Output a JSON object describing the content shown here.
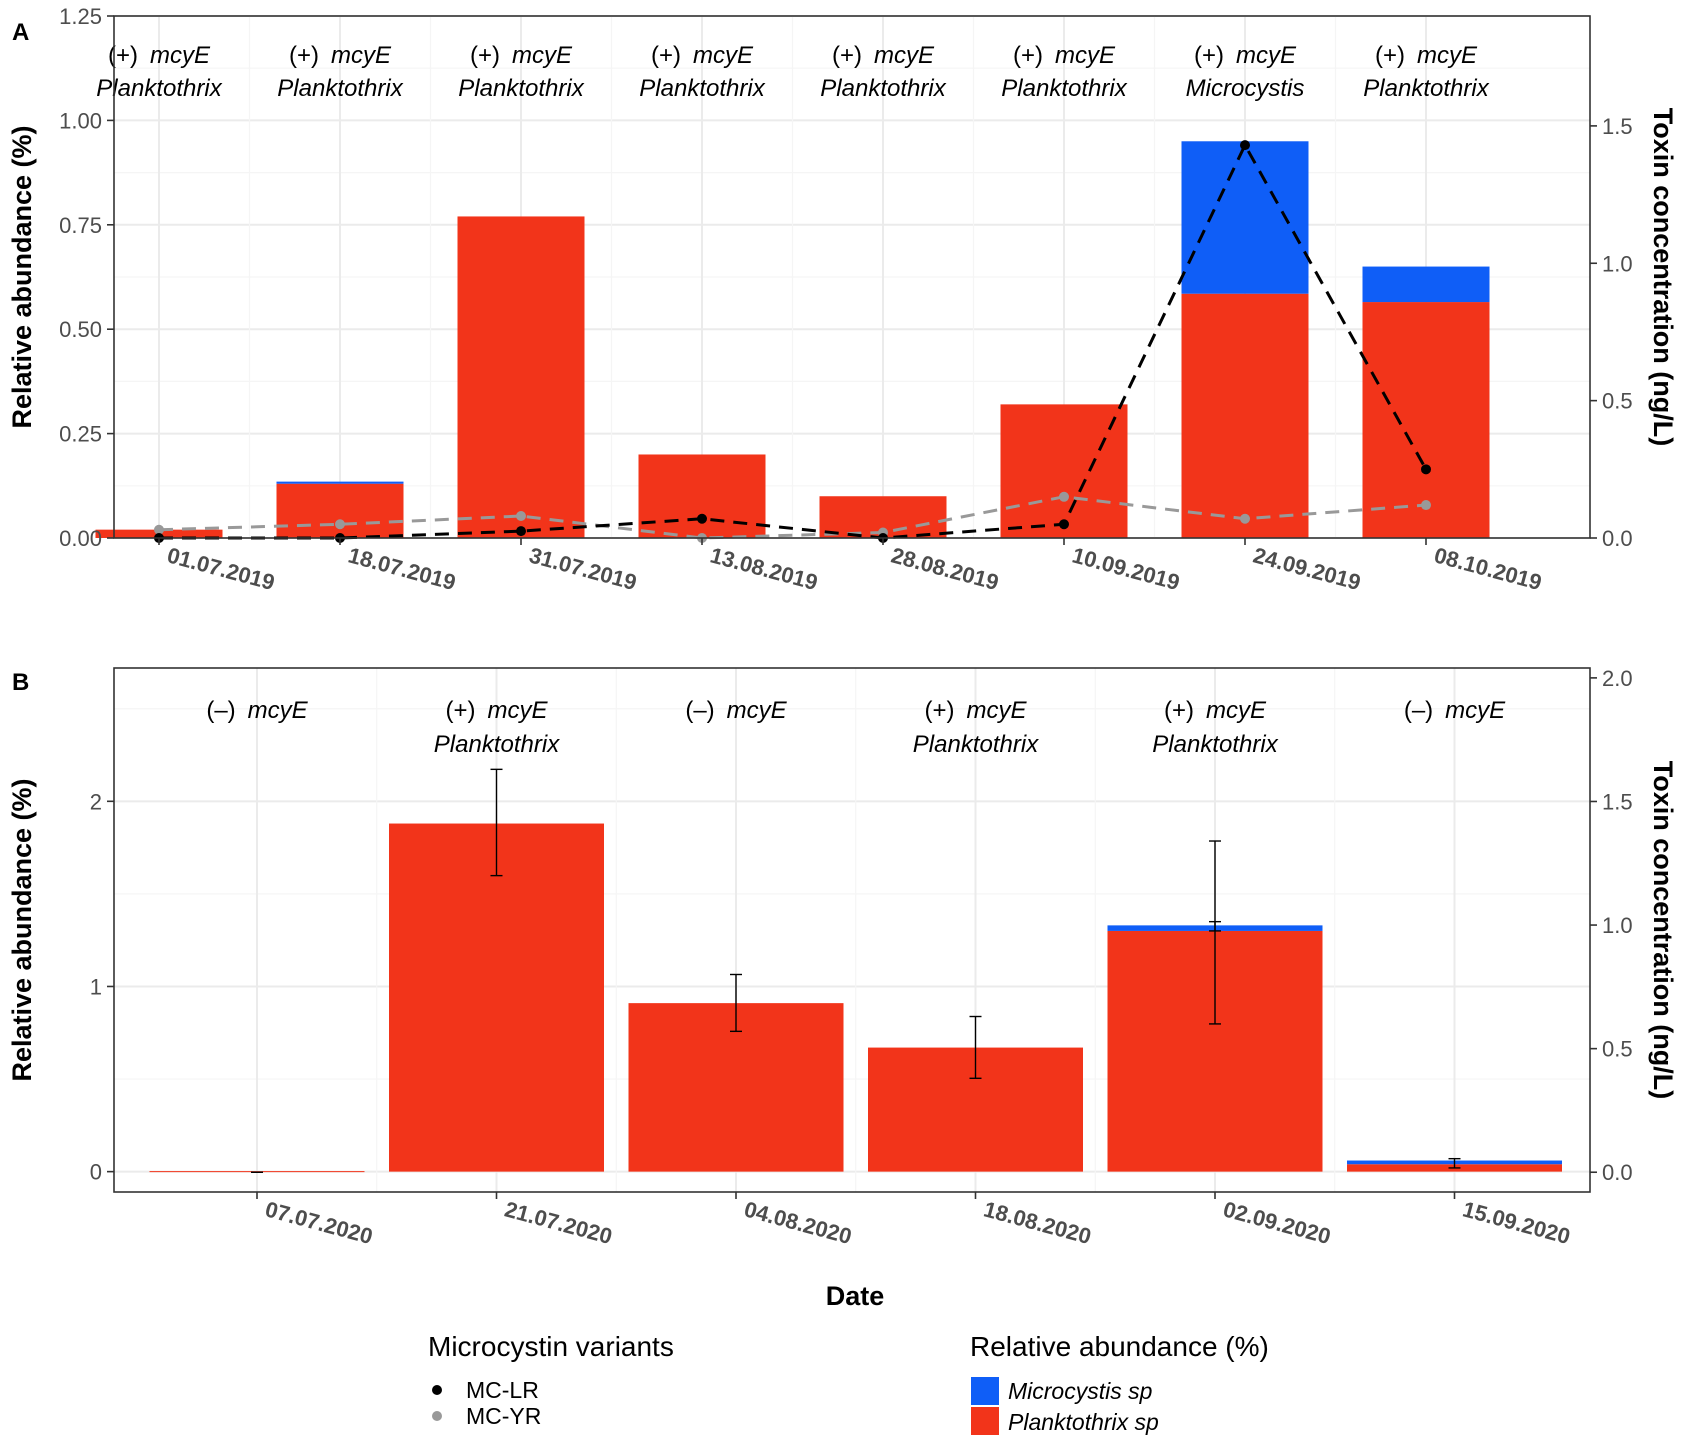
{
  "colors": {
    "microcystis": "#0f5ef7",
    "planktothrix": "#f2341a",
    "mc_lr": "#000000",
    "mc_yr": "#999999"
  },
  "x_axis_title": "Date",
  "legend": {
    "variants_title": "Microcystin variants",
    "variants": [
      {
        "label": "MC-LR",
        "color": "#000000"
      },
      {
        "label": "MC-YR",
        "color": "#999999"
      }
    ],
    "abundance_title": "Relative abundance (%)",
    "abundance": [
      {
        "label": "Microcystis sp",
        "color": "#0f5ef7"
      },
      {
        "label": "Planktothrix sp",
        "color": "#f2341a"
      }
    ]
  },
  "chart_data": [
    {
      "panel": "A",
      "type": "bar",
      "ylabel": "Relative abundance (%)",
      "y2label": "Toxin concentration (ng/L)",
      "ylim": [
        0,
        1.25
      ],
      "yticks": [
        "0.00",
        "0.25",
        "0.50",
        "0.75",
        "1.00",
        "1.25"
      ],
      "ytick_values": [
        0,
        0.25,
        0.5,
        0.75,
        1.0,
        1.25
      ],
      "y2lim": [
        0,
        1.9
      ],
      "y2ticks": [
        "0.0",
        "0.5",
        "1.0",
        "1.5"
      ],
      "y2tick_values": [
        0,
        0.5,
        1.0,
        1.5
      ],
      "categories": [
        "01.07.2019",
        "18.07.2019",
        "31.07.2019",
        "13.08.2019",
        "28.08.2019",
        "10.09.2019",
        "24.09.2019",
        "08.10.2019"
      ],
      "series": [
        {
          "name": "Planktothrix sp",
          "values": [
            0.02,
            0.13,
            0.77,
            0.2,
            0.1,
            0.32,
            0.585,
            0.565
          ]
        },
        {
          "name": "Microcystis sp",
          "values": [
            0.0,
            0.005,
            0.0,
            0.0,
            0.0,
            0.0,
            0.365,
            0.085
          ]
        }
      ],
      "lines": [
        {
          "name": "MC-LR",
          "values": [
            0.0,
            0.0,
            0.025,
            0.07,
            0.0,
            0.05,
            1.43,
            0.25
          ]
        },
        {
          "name": "MC-YR",
          "values": [
            0.03,
            0.05,
            0.08,
            0.0,
            0.02,
            0.15,
            0.07,
            0.12
          ]
        }
      ],
      "annotations": [
        {
          "line1_sign": "(+)",
          "line1_gene": "mcyE",
          "line2": "Planktothrix"
        },
        {
          "line1_sign": "(+)",
          "line1_gene": "mcyE",
          "line2": "Planktothrix"
        },
        {
          "line1_sign": "(+)",
          "line1_gene": "mcyE",
          "line2": "Planktothrix"
        },
        {
          "line1_sign": "(+)",
          "line1_gene": "mcyE",
          "line2": "Planktothrix"
        },
        {
          "line1_sign": "(+)",
          "line1_gene": "mcyE",
          "line2": "Planktothrix"
        },
        {
          "line1_sign": "(+)",
          "line1_gene": "mcyE",
          "line2": "Planktothrix"
        },
        {
          "line1_sign": "(+)",
          "line1_gene": "mcyE",
          "line2": "Microcystis"
        },
        {
          "line1_sign": "(+)",
          "line1_gene": "mcyE",
          "line2": "Planktothrix"
        }
      ]
    },
    {
      "panel": "B",
      "type": "bar",
      "ylabel": "Relative abundance (%)",
      "y2label": "Toxin concentration (ng/L)",
      "ylim": [
        -0.11,
        2.72
      ],
      "yticks": [
        "0",
        "1",
        "2"
      ],
      "ytick_values": [
        0,
        1,
        2
      ],
      "y2lim": [
        -0.08,
        2.04
      ],
      "y2ticks": [
        "0.0",
        "0.5",
        "1.0",
        "1.5",
        "2.0"
      ],
      "y2tick_values": [
        0,
        0.5,
        1.0,
        1.5,
        2.0
      ],
      "categories": [
        "07.07.2020",
        "21.07.2020",
        "04.08.2020",
        "18.08.2020",
        "02.09.2020",
        "15.09.2020"
      ],
      "series": [
        {
          "name": "Planktothrix sp",
          "values": [
            0.0,
            1.88,
            0.91,
            0.67,
            1.3,
            0.04
          ]
        },
        {
          "name": "Microcystis sp",
          "values": [
            0.0,
            0.0,
            0.0,
            0.0,
            0.03,
            0.02
          ]
        }
      ],
      "error_bars": [
        {
          "axis": "y2",
          "lo": 0.0,
          "hi": 0.0
        },
        {
          "axis": "y2",
          "lo": 1.2,
          "hi": 1.63
        },
        {
          "axis": "y2",
          "lo": 0.57,
          "hi": 0.8
        },
        {
          "axis": "y2",
          "lo": 0.38,
          "hi": 0.63
        },
        {
          "axis": "y2",
          "lo": 0.6,
          "hi": 1.34
        },
        {
          "axis": "y",
          "lo": 1.3,
          "hi": 1.35
        },
        {
          "axis": "y",
          "lo": 0.02,
          "hi": 0.07
        }
      ],
      "error_bar_categories": [
        0,
        1,
        2,
        3,
        4,
        4,
        5
      ],
      "annotations": [
        {
          "line1_sign": "(–)",
          "line1_gene": "mcyE",
          "line2": ""
        },
        {
          "line1_sign": "(+)",
          "line1_gene": "mcyE",
          "line2": "Planktothrix"
        },
        {
          "line1_sign": "(–)",
          "line1_gene": "mcyE",
          "line2": ""
        },
        {
          "line1_sign": "(+)",
          "line1_gene": "mcyE",
          "line2": "Planktothrix"
        },
        {
          "line1_sign": "(+)",
          "line1_gene": "mcyE",
          "line2": "Planktothrix"
        },
        {
          "line1_sign": "(–)",
          "line1_gene": "mcyE",
          "line2": ""
        }
      ]
    }
  ]
}
